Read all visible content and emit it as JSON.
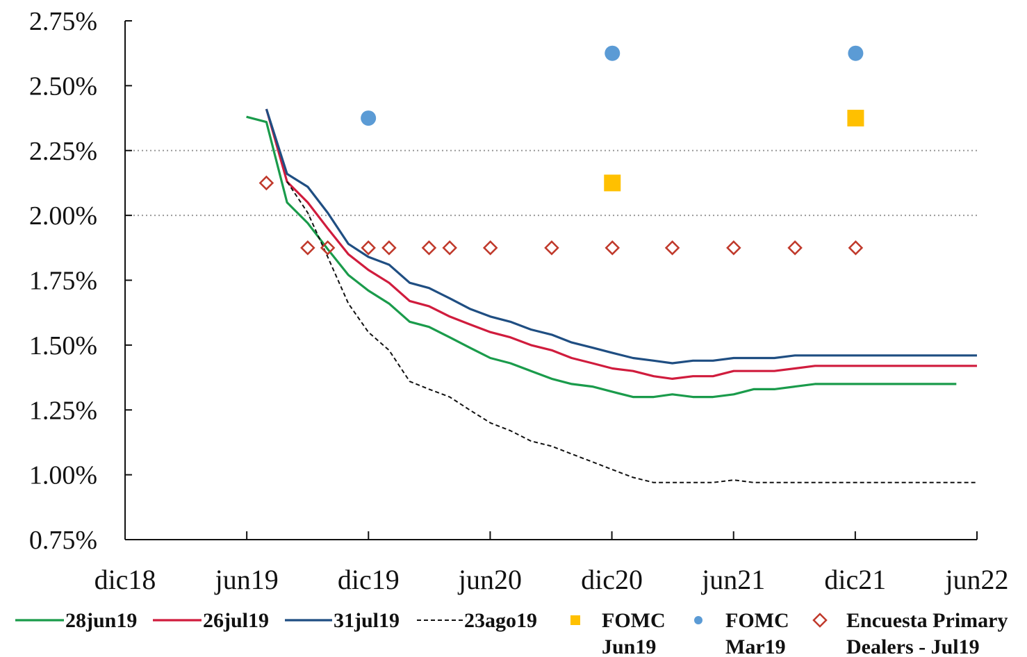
{
  "chart_data": {
    "type": "line",
    "title": "",
    "xlabel": "",
    "ylabel": "",
    "ylim": [
      0.75,
      2.75
    ],
    "yticks": [
      "0.75%",
      "1.00%",
      "1.25%",
      "1.50%",
      "1.75%",
      "2.00%",
      "2.25%",
      "2.50%",
      "2.75%"
    ],
    "xticks": [
      "dic18",
      "jun19",
      "dic19",
      "jun20",
      "dic20",
      "jun21",
      "dic21",
      "jun22"
    ],
    "reference_lines": [
      2.0,
      2.25
    ],
    "grid": false,
    "legend_position": "bottom",
    "series": [
      {
        "name": "28jun19",
        "color": "#1a9b4b",
        "style": "solid",
        "points": [
          [
            "2019-06-01",
            2.38
          ],
          [
            "2019-07-01",
            2.36
          ],
          [
            "2019-08-01",
            2.05
          ],
          [
            "2019-09-01",
            1.97
          ],
          [
            "2019-10-01",
            1.87
          ],
          [
            "2019-11-01",
            1.77
          ],
          [
            "2019-12-01",
            1.71
          ],
          [
            "2020-01-01",
            1.66
          ],
          [
            "2020-02-01",
            1.59
          ],
          [
            "2020-03-01",
            1.57
          ],
          [
            "2020-04-01",
            1.53
          ],
          [
            "2020-05-01",
            1.49
          ],
          [
            "2020-06-01",
            1.45
          ],
          [
            "2020-07-01",
            1.43
          ],
          [
            "2020-08-01",
            1.4
          ],
          [
            "2020-09-01",
            1.37
          ],
          [
            "2020-10-01",
            1.35
          ],
          [
            "2020-11-01",
            1.34
          ],
          [
            "2020-12-01",
            1.32
          ],
          [
            "2021-01-01",
            1.3
          ],
          [
            "2021-02-01",
            1.3
          ],
          [
            "2021-03-01",
            1.31
          ],
          [
            "2021-04-01",
            1.3
          ],
          [
            "2021-05-01",
            1.3
          ],
          [
            "2021-06-01",
            1.31
          ],
          [
            "2021-07-01",
            1.33
          ],
          [
            "2021-08-01",
            1.33
          ],
          [
            "2021-09-01",
            1.34
          ],
          [
            "2021-10-01",
            1.35
          ],
          [
            "2021-11-01",
            1.35
          ],
          [
            "2021-12-01",
            1.35
          ],
          [
            "2022-01-01",
            1.35
          ],
          [
            "2022-02-01",
            1.35
          ],
          [
            "2022-03-01",
            1.35
          ],
          [
            "2022-04-01",
            1.35
          ],
          [
            "2022-05-01",
            1.35
          ]
        ]
      },
      {
        "name": "26jul19",
        "color": "#d01c3d",
        "style": "solid",
        "points": [
          [
            "2019-07-01",
            2.41
          ],
          [
            "2019-08-01",
            2.13
          ],
          [
            "2019-09-01",
            2.05
          ],
          [
            "2019-10-01",
            1.95
          ],
          [
            "2019-11-01",
            1.85
          ],
          [
            "2019-12-01",
            1.79
          ],
          [
            "2020-01-01",
            1.74
          ],
          [
            "2020-02-01",
            1.67
          ],
          [
            "2020-03-01",
            1.65
          ],
          [
            "2020-04-01",
            1.61
          ],
          [
            "2020-05-01",
            1.58
          ],
          [
            "2020-06-01",
            1.55
          ],
          [
            "2020-07-01",
            1.53
          ],
          [
            "2020-08-01",
            1.5
          ],
          [
            "2020-09-01",
            1.48
          ],
          [
            "2020-10-01",
            1.45
          ],
          [
            "2020-11-01",
            1.43
          ],
          [
            "2020-12-01",
            1.41
          ],
          [
            "2021-01-01",
            1.4
          ],
          [
            "2021-02-01",
            1.38
          ],
          [
            "2021-03-01",
            1.37
          ],
          [
            "2021-04-01",
            1.38
          ],
          [
            "2021-05-01",
            1.38
          ],
          [
            "2021-06-01",
            1.4
          ],
          [
            "2021-07-01",
            1.4
          ],
          [
            "2021-08-01",
            1.4
          ],
          [
            "2021-09-01",
            1.41
          ],
          [
            "2021-10-01",
            1.42
          ],
          [
            "2021-11-01",
            1.42
          ],
          [
            "2021-12-01",
            1.42
          ],
          [
            "2022-01-01",
            1.42
          ],
          [
            "2022-02-01",
            1.42
          ],
          [
            "2022-03-01",
            1.42
          ],
          [
            "2022-04-01",
            1.42
          ],
          [
            "2022-05-01",
            1.42
          ],
          [
            "2022-06-01",
            1.42
          ]
        ]
      },
      {
        "name": "31jul19",
        "color": "#1f4e82",
        "style": "solid",
        "points": [
          [
            "2019-07-01",
            2.41
          ],
          [
            "2019-08-01",
            2.16
          ],
          [
            "2019-09-01",
            2.11
          ],
          [
            "2019-10-01",
            2.01
          ],
          [
            "2019-11-01",
            1.89
          ],
          [
            "2019-12-01",
            1.84
          ],
          [
            "2020-01-01",
            1.81
          ],
          [
            "2020-02-01",
            1.74
          ],
          [
            "2020-03-01",
            1.72
          ],
          [
            "2020-04-01",
            1.68
          ],
          [
            "2020-05-01",
            1.64
          ],
          [
            "2020-06-01",
            1.61
          ],
          [
            "2020-07-01",
            1.59
          ],
          [
            "2020-08-01",
            1.56
          ],
          [
            "2020-09-01",
            1.54
          ],
          [
            "2020-10-01",
            1.51
          ],
          [
            "2020-11-01",
            1.49
          ],
          [
            "2020-12-01",
            1.47
          ],
          [
            "2021-01-01",
            1.45
          ],
          [
            "2021-02-01",
            1.44
          ],
          [
            "2021-03-01",
            1.43
          ],
          [
            "2021-04-01",
            1.44
          ],
          [
            "2021-05-01",
            1.44
          ],
          [
            "2021-06-01",
            1.45
          ],
          [
            "2021-07-01",
            1.45
          ],
          [
            "2021-08-01",
            1.45
          ],
          [
            "2021-09-01",
            1.46
          ],
          [
            "2021-10-01",
            1.46
          ],
          [
            "2021-11-01",
            1.46
          ],
          [
            "2021-12-01",
            1.46
          ],
          [
            "2022-01-01",
            1.46
          ],
          [
            "2022-02-01",
            1.46
          ],
          [
            "2022-03-01",
            1.46
          ],
          [
            "2022-04-01",
            1.46
          ],
          [
            "2022-05-01",
            1.46
          ],
          [
            "2022-06-01",
            1.46
          ]
        ]
      },
      {
        "name": "23ago19",
        "color": "#111111",
        "style": "dashed",
        "points": [
          [
            "2019-08-01",
            2.13
          ],
          [
            "2019-09-01",
            2.01
          ],
          [
            "2019-10-01",
            1.84
          ],
          [
            "2019-11-01",
            1.66
          ],
          [
            "2019-12-01",
            1.55
          ],
          [
            "2020-01-01",
            1.48
          ],
          [
            "2020-02-01",
            1.36
          ],
          [
            "2020-03-01",
            1.33
          ],
          [
            "2020-04-01",
            1.3
          ],
          [
            "2020-05-01",
            1.25
          ],
          [
            "2020-06-01",
            1.2
          ],
          [
            "2020-07-01",
            1.17
          ],
          [
            "2020-08-01",
            1.13
          ],
          [
            "2020-09-01",
            1.11
          ],
          [
            "2020-10-01",
            1.08
          ],
          [
            "2020-11-01",
            1.05
          ],
          [
            "2020-12-01",
            1.02
          ],
          [
            "2021-01-01",
            0.99
          ],
          [
            "2021-02-01",
            0.97
          ],
          [
            "2021-03-01",
            0.97
          ],
          [
            "2021-04-01",
            0.97
          ],
          [
            "2021-05-01",
            0.97
          ],
          [
            "2021-06-01",
            0.98
          ],
          [
            "2021-07-01",
            0.97
          ],
          [
            "2021-08-01",
            0.97
          ],
          [
            "2021-09-01",
            0.97
          ],
          [
            "2021-10-01",
            0.97
          ],
          [
            "2021-11-01",
            0.97
          ],
          [
            "2021-12-01",
            0.97
          ],
          [
            "2022-01-01",
            0.97
          ],
          [
            "2022-02-01",
            0.97
          ],
          [
            "2022-03-01",
            0.97
          ],
          [
            "2022-04-01",
            0.97
          ],
          [
            "2022-05-01",
            0.97
          ],
          [
            "2022-06-01",
            0.97
          ]
        ]
      }
    ],
    "markers": [
      {
        "name": "FOMC Jun19",
        "color": "#ffc000",
        "shape": "square",
        "points": [
          [
            "2020-12-01",
            2.125
          ],
          [
            "2021-12-01",
            2.375
          ]
        ]
      },
      {
        "name": "FOMC Mar19",
        "color": "#5b9bd5",
        "shape": "circle",
        "points": [
          [
            "2019-12-01",
            2.375
          ],
          [
            "2020-12-01",
            2.625
          ],
          [
            "2021-12-01",
            2.625
          ]
        ]
      },
      {
        "name": "Encuesta Primary Dealers - Jul19",
        "color": "#c0392b",
        "shape": "diamond-open",
        "points": [
          [
            "2019-07-01",
            2.125
          ],
          [
            "2019-09-01",
            1.875
          ],
          [
            "2019-10-01",
            1.875
          ],
          [
            "2019-12-01",
            1.875
          ],
          [
            "2020-01-01",
            1.875
          ],
          [
            "2020-03-01",
            1.875
          ],
          [
            "2020-04-01",
            1.875
          ],
          [
            "2020-06-01",
            1.875
          ],
          [
            "2020-09-01",
            1.875
          ],
          [
            "2020-12-01",
            1.875
          ],
          [
            "2021-03-01",
            1.875
          ],
          [
            "2021-06-01",
            1.875
          ],
          [
            "2021-09-01",
            1.875
          ],
          [
            "2021-12-01",
            1.875
          ]
        ]
      }
    ],
    "legend": [
      {
        "label": "28jun19",
        "kind": "line"
      },
      {
        "label": "26jul19",
        "kind": "line"
      },
      {
        "label": "31jul19",
        "kind": "line"
      },
      {
        "label": "23ago19",
        "kind": "line"
      },
      {
        "label": "FOMC",
        "label2": "Jun19",
        "kind": "marker"
      },
      {
        "label": "FOMC",
        "label2": "Mar19",
        "kind": "marker"
      },
      {
        "label": "Encuesta Primary",
        "label2": "Dealers - Jul19",
        "kind": "marker"
      }
    ]
  }
}
